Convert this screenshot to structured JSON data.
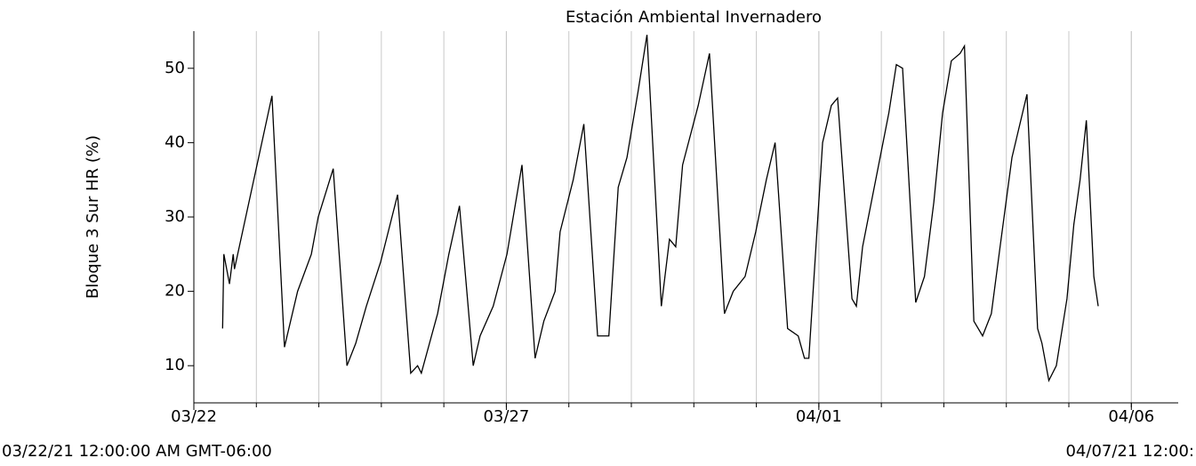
{
  "chart_data": {
    "type": "line",
    "title": "Estación Ambiental Invernadero",
    "y_label": "Bloque 3 Sur HR (%)",
    "range_start_label": "03/22/21 12:00:00 AM GMT-06:00",
    "range_end_label": "04/07/21 12:00:",
    "xlim": [
      0,
      15.75
    ],
    "xticks": [
      {
        "value": 0,
        "label": "03/22"
      },
      {
        "value": 5,
        "label": "03/27"
      },
      {
        "value": 10,
        "label": "04/01"
      },
      {
        "value": 15,
        "label": "04/06"
      }
    ],
    "xgrid": [
      1,
      2,
      3,
      4,
      5,
      6,
      7,
      8,
      9,
      10,
      11,
      12,
      13,
      14,
      15
    ],
    "ylim": [
      5,
      55
    ],
    "yticks": [
      10,
      20,
      30,
      40,
      50
    ],
    "grid": true,
    "series": [
      {
        "name": "Bloque 3 Sur HR (%)",
        "color": "#000000",
        "x": [
          0.46,
          0.48,
          0.57,
          0.63,
          0.65,
          1.25,
          1.45,
          1.66,
          1.88,
          1.99,
          2.23,
          2.45,
          2.59,
          2.76,
          2.99,
          3.26,
          3.47,
          3.58,
          3.64,
          3.9,
          4.08,
          4.25,
          4.47,
          4.58,
          4.79,
          5.01,
          5.25,
          5.46,
          5.6,
          5.78,
          5.86,
          6.07,
          6.24,
          6.46,
          6.64,
          6.79,
          6.93,
          7.11,
          7.25,
          7.48,
          7.61,
          7.71,
          7.82,
          8.07,
          8.25,
          8.49,
          8.63,
          8.82,
          8.99,
          9.16,
          9.3,
          9.5,
          9.67,
          9.77,
          9.84,
          10.06,
          10.2,
          10.3,
          10.53,
          10.6,
          10.7,
          10.98,
          11.12,
          11.24,
          11.34,
          11.55,
          11.69,
          11.84,
          11.98,
          12.12,
          12.26,
          12.33,
          12.48,
          12.62,
          12.76,
          12.9,
          13.09,
          13.33,
          13.5,
          13.57,
          13.68,
          13.8,
          13.97,
          14.08,
          14.18,
          14.28,
          14.4,
          14.47
        ],
        "values": [
          15,
          25,
          21,
          25,
          23,
          46.3,
          12.5,
          20,
          25,
          30,
          36.5,
          10,
          13,
          18,
          24,
          33,
          9,
          10,
          9,
          17,
          25,
          31.5,
          10,
          14,
          18,
          25,
          37,
          11,
          16,
          20,
          28,
          35,
          42.5,
          14,
          14,
          34,
          38,
          47,
          54.5,
          18,
          27,
          26,
          37,
          45,
          52,
          17,
          20,
          22,
          28,
          35,
          40,
          15,
          14,
          11,
          11,
          40,
          45,
          46,
          19,
          18,
          26,
          38,
          44,
          50.5,
          50,
          18.5,
          22,
          32,
          44,
          51,
          52,
          53,
          16,
          14,
          17,
          26,
          38,
          46.5,
          15,
          13,
          8,
          10,
          19,
          29,
          35,
          43,
          22,
          18
        ]
      }
    ]
  }
}
